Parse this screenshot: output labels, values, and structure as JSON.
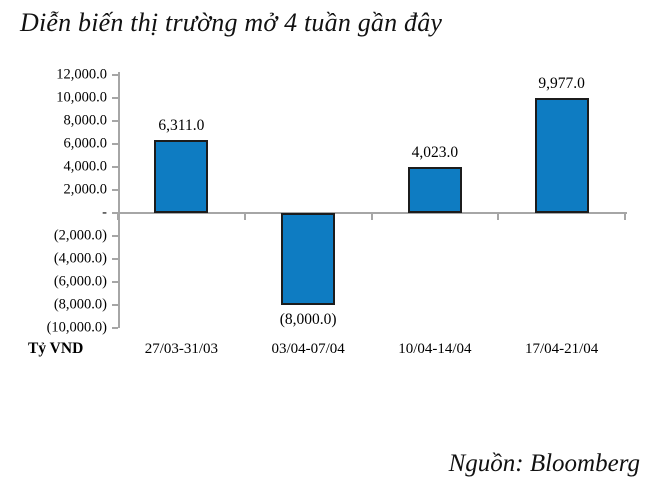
{
  "title": "Diễn biến thị trường mở 4 tuần gần đây",
  "source": "Nguồn: Bloomberg",
  "chart_data": {
    "type": "bar",
    "title": "Diễn biến thị trường mở 4 tuần gần đây",
    "categories": [
      "27/03-31/03",
      "03/04-07/04",
      "10/04-14/04",
      "17/04-21/04"
    ],
    "values": [
      6311.0,
      -8000.0,
      4023.0,
      9977.0
    ],
    "bar_labels": [
      "6,311.0",
      "(8,000.0)",
      "4,023.0",
      "9,977.0"
    ],
    "xlabel": "",
    "ylabel": "Tỷ VND",
    "ylim": [
      -10000,
      12000
    ],
    "ytick_interval": 2000,
    "yticks": [
      {
        "value": 12000,
        "label": "12,000.0"
      },
      {
        "value": 10000,
        "label": "10,000.0"
      },
      {
        "value": 8000,
        "label": "8,000.0"
      },
      {
        "value": 6000,
        "label": "6,000.0"
      },
      {
        "value": 4000,
        "label": "4,000.0"
      },
      {
        "value": 2000,
        "label": "2,000.0"
      },
      {
        "value": 0,
        "label": "-"
      },
      {
        "value": -2000,
        "label": "(2,000.0)"
      },
      {
        "value": -4000,
        "label": "(4,000.0)"
      },
      {
        "value": -6000,
        "label": "(6,000.0)"
      },
      {
        "value": -8000,
        "label": "(8,000.0)"
      },
      {
        "value": -10000,
        "label": "(10,000.0)"
      }
    ],
    "grid": false,
    "legend": null,
    "colors": {
      "bar_fill": "#0e7cc2",
      "bar_border": "#1c1c1c",
      "axis_line": "#a6a6a6",
      "text": "#000000"
    }
  }
}
